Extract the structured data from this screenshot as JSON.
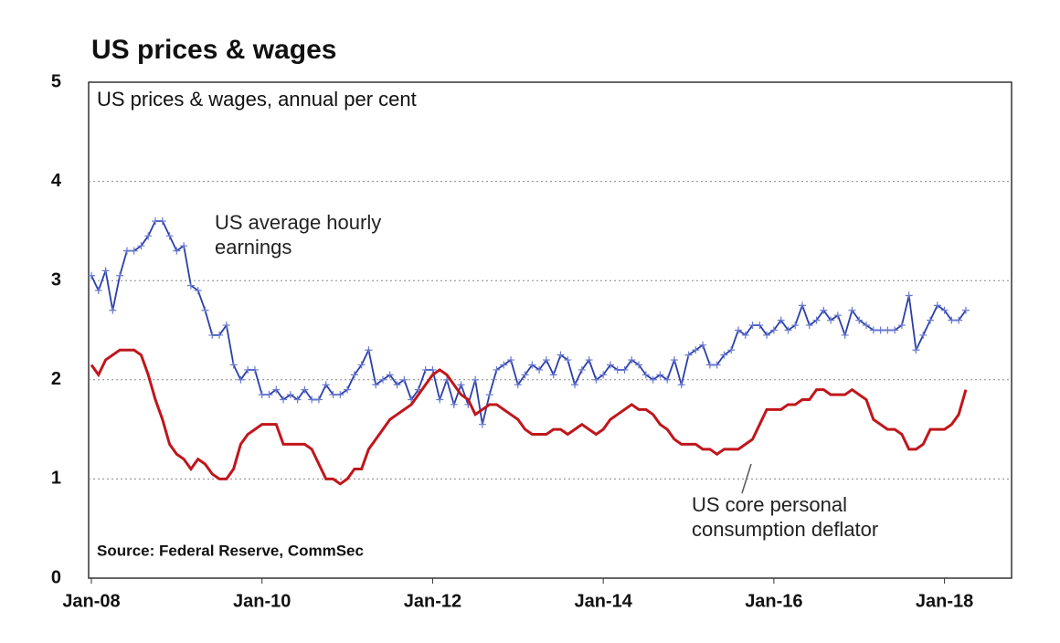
{
  "chart_data": {
    "type": "line",
    "title": "US prices & wages",
    "subtitle": "US prices & wages, annual per cent",
    "source": "Source: Federal Reserve, CommSec",
    "categories": [
      "Jan-08",
      null,
      null,
      null,
      null,
      null,
      null,
      null,
      null,
      null,
      null,
      null,
      null,
      null,
      null,
      null,
      null,
      null,
      null,
      null,
      null,
      null,
      null,
      null,
      "Jan-10",
      null,
      null,
      null,
      null,
      null,
      null,
      null,
      null,
      null,
      null,
      null,
      null,
      null,
      null,
      null,
      null,
      null,
      null,
      null,
      null,
      null,
      null,
      null,
      "Jan-12",
      null,
      null,
      null,
      null,
      null,
      null,
      null,
      null,
      null,
      null,
      null,
      null,
      null,
      null,
      null,
      null,
      null,
      null,
      null,
      null,
      null,
      null,
      null,
      "Jan-14",
      null,
      null,
      null,
      null,
      null,
      null,
      null,
      null,
      null,
      null,
      null,
      null,
      null,
      null,
      null,
      null,
      null,
      null,
      null,
      null,
      null,
      null,
      null,
      "Jan-16",
      null,
      null,
      null,
      null,
      null,
      null,
      null,
      null,
      null,
      null,
      null,
      null,
      null,
      null,
      null,
      null,
      null,
      null,
      null,
      null,
      null,
      null,
      null,
      "Jan-18",
      null,
      null,
      null
    ],
    "series": [
      {
        "name": "US average hourly earnings",
        "color": "#2b3fa8",
        "markers": true,
        "values": [
          3.05,
          2.9,
          3.1,
          2.7,
          3.05,
          3.3,
          3.3,
          3.35,
          3.45,
          3.6,
          3.6,
          3.45,
          3.3,
          3.35,
          2.95,
          2.9,
          2.7,
          2.45,
          2.45,
          2.55,
          2.15,
          2.0,
          2.1,
          2.1,
          1.85,
          1.85,
          1.9,
          1.8,
          1.85,
          1.8,
          1.9,
          1.8,
          1.8,
          1.95,
          1.85,
          1.85,
          1.9,
          2.05,
          2.15,
          2.3,
          1.95,
          2.0,
          2.05,
          1.95,
          2.0,
          1.8,
          1.9,
          2.1,
          2.1,
          1.8,
          2.0,
          1.75,
          1.95,
          1.75,
          2.0,
          1.55,
          1.85,
          2.1,
          2.15,
          2.2,
          1.95,
          2.05,
          2.15,
          2.1,
          2.2,
          2.05,
          2.25,
          2.2,
          1.95,
          2.1,
          2.2,
          2.0,
          2.05,
          2.15,
          2.1,
          2.1,
          2.2,
          2.15,
          2.05,
          2.0,
          2.05,
          2.0,
          2.2,
          1.95,
          2.25,
          2.3,
          2.35,
          2.15,
          2.15,
          2.25,
          2.3,
          2.5,
          2.45,
          2.55,
          2.55,
          2.45,
          2.5,
          2.6,
          2.5,
          2.55,
          2.75,
          2.55,
          2.6,
          2.7,
          2.6,
          2.65,
          2.45,
          2.7,
          2.6,
          2.55,
          2.5,
          2.5,
          2.5,
          2.5,
          2.55,
          2.85,
          2.3,
          2.45,
          2.6,
          2.75,
          2.7,
          2.6,
          2.6,
          2.7
        ]
      },
      {
        "name": "US core personal consumption deflator",
        "color": "#c0161b",
        "markers": false,
        "values": [
          2.15,
          2.05,
          2.2,
          2.25,
          2.3,
          2.3,
          2.3,
          2.25,
          2.05,
          1.8,
          1.6,
          1.35,
          1.25,
          1.2,
          1.1,
          1.2,
          1.15,
          1.05,
          1.0,
          1.0,
          1.1,
          1.35,
          1.45,
          1.5,
          1.55,
          1.55,
          1.55,
          1.35,
          1.35,
          1.35,
          1.35,
          1.3,
          1.15,
          1.0,
          1.0,
          0.95,
          1.0,
          1.1,
          1.1,
          1.3,
          1.4,
          1.5,
          1.6,
          1.65,
          1.7,
          1.75,
          1.85,
          1.95,
          2.05,
          2.1,
          2.05,
          1.95,
          1.85,
          1.8,
          1.65,
          1.7,
          1.75,
          1.75,
          1.7,
          1.65,
          1.6,
          1.5,
          1.45,
          1.45,
          1.45,
          1.5,
          1.5,
          1.45,
          1.5,
          1.55,
          1.5,
          1.45,
          1.5,
          1.6,
          1.65,
          1.7,
          1.75,
          1.7,
          1.7,
          1.65,
          1.55,
          1.5,
          1.4,
          1.35,
          1.35,
          1.35,
          1.3,
          1.3,
          1.25,
          1.3,
          1.3,
          1.3,
          1.35,
          1.4,
          1.55,
          1.7,
          1.7,
          1.7,
          1.75,
          1.75,
          1.8,
          1.8,
          1.9,
          1.9,
          1.85,
          1.85,
          1.85,
          1.9,
          1.85,
          1.8,
          1.6,
          1.55,
          1.5,
          1.5,
          1.45,
          1.3,
          1.3,
          1.35,
          1.5,
          1.5,
          1.5,
          1.55,
          1.65,
          1.9
        ]
      }
    ],
    "ylim": [
      0,
      5
    ],
    "yticks": [
      0,
      1,
      2,
      3,
      4,
      5
    ],
    "grid": true
  }
}
